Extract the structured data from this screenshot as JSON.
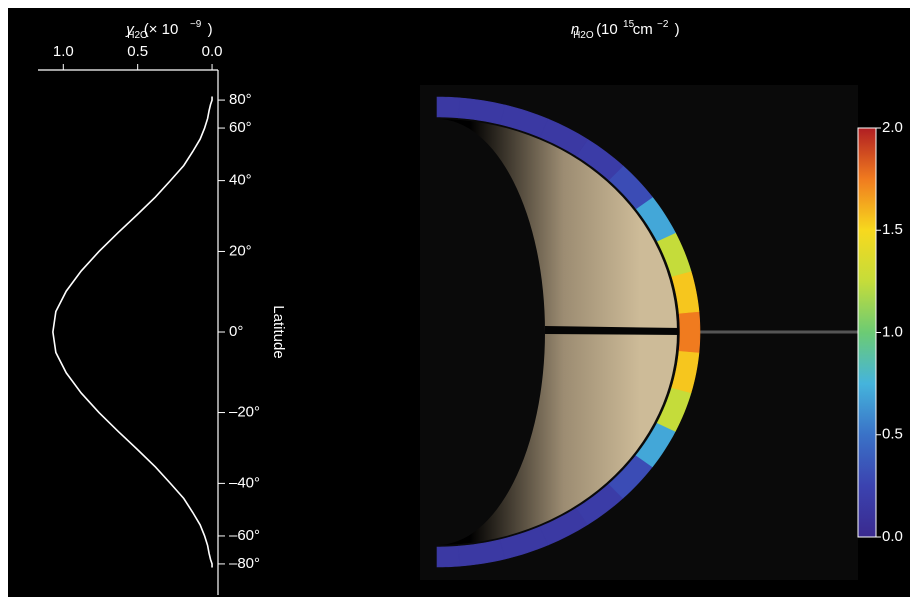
{
  "chart_data": [
    {
      "type": "line",
      "title_parts": [
        "y",
        "H2O",
        "(× 10",
        "−9",
        ")"
      ],
      "y_label": "Latitude",
      "latitude": [
        -90,
        -85,
        -80,
        -75,
        -70,
        -65,
        -60,
        -55,
        -50,
        -45,
        -40,
        -35,
        -30,
        -25,
        -20,
        -15,
        -10,
        -5,
        0,
        5,
        10,
        15,
        20,
        25,
        30,
        35,
        40,
        45,
        50,
        55,
        60,
        65,
        70,
        75,
        80,
        85,
        90
      ],
      "values": [
        0,
        0,
        0,
        0.01,
        0.02,
        0.03,
        0.05,
        0.08,
        0.13,
        0.19,
        0.28,
        0.38,
        0.5,
        0.63,
        0.76,
        0.88,
        0.98,
        1.05,
        1.07,
        1.05,
        0.98,
        0.88,
        0.76,
        0.63,
        0.5,
        0.38,
        0.28,
        0.19,
        0.13,
        0.08,
        0.05,
        0.03,
        0.02,
        0.01,
        0,
        0,
        0
      ],
      "color": "#ffffff",
      "xlim": [
        1.17,
        -0.04
      ],
      "xticks": [
        {
          "value": 1.0,
          "label": "1.0"
        },
        {
          "value": 0.5,
          "label": "0.5"
        },
        {
          "value": 0.0,
          "label": "0.0"
        }
      ],
      "ylim": [
        -90,
        90
      ],
      "y_scale": "sine",
      "yticks": [
        {
          "value": 80,
          "label": "80°"
        },
        {
          "value": 60,
          "label": "60°"
        },
        {
          "value": 40,
          "label": "40°"
        },
        {
          "value": 20,
          "label": "20°"
        },
        {
          "value": 0,
          "label": "0°"
        },
        {
          "value": -20,
          "label": "–20°"
        },
        {
          "value": -40,
          "label": "–40°"
        },
        {
          "value": -60,
          "label": "–60°"
        },
        {
          "value": -80,
          "label": "–80°"
        }
      ]
    },
    {
      "type": "limb-band",
      "title_parts": [
        "n",
        "H2O",
        "(10",
        "15",
        "cm",
        "−2",
        ")"
      ],
      "latitude": [
        -90,
        -80,
        -70,
        -60,
        -50,
        -40,
        -30,
        -20,
        -10,
        0,
        10,
        20,
        30,
        40,
        50,
        60,
        70,
        80,
        90
      ],
      "values": [
        0.15,
        0.15,
        0.15,
        0.15,
        0.18,
        0.3,
        0.7,
        1.25,
        1.55,
        1.75,
        1.55,
        1.25,
        0.7,
        0.3,
        0.18,
        0.15,
        0.15,
        0.15,
        0.15
      ],
      "colormap": [
        "#3a2a8f",
        "#3b43b0",
        "#3a72c7",
        "#45b4dc",
        "#6ccb74",
        "#c5dc3a",
        "#f7d91e",
        "#f07b1f",
        "#b01e22"
      ],
      "clim": [
        0,
        2
      ],
      "cticks": [
        {
          "value": 0,
          "label": "0.0"
        },
        {
          "value": 0.5,
          "label": "0.5"
        },
        {
          "value": 1,
          "label": "1.0"
        },
        {
          "value": 1.5,
          "label": "1.5"
        },
        {
          "value": 2,
          "label": "2.0"
        }
      ]
    }
  ]
}
